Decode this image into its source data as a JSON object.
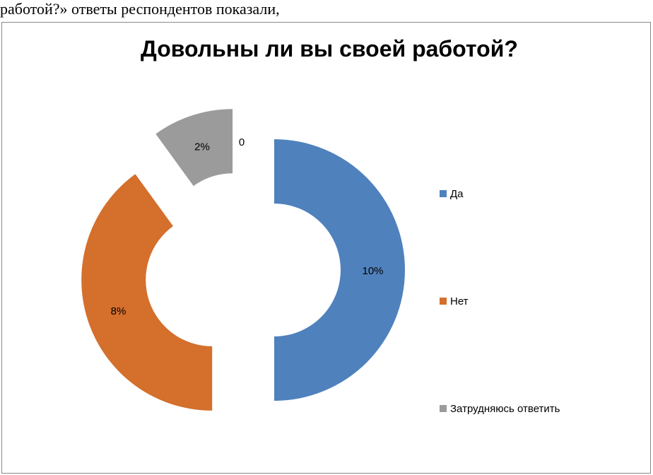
{
  "document": {
    "text_line": "работой?» ответы респондентов показали,"
  },
  "chart_data": {
    "type": "pie",
    "variant": "exploded-doughnut",
    "title": "Довольны ли вы своей работой?",
    "categories": [
      "Да",
      "Нет",
      "Затрудняюсь ответить"
    ],
    "values": [
      10,
      8,
      2
    ],
    "data_labels": [
      "10%",
      "8%",
      "2%"
    ],
    "extra_labels": [
      "0"
    ],
    "colors": [
      "#4F81BD",
      "#D46F2C",
      "#9B9B9B"
    ],
    "legend_position": "right"
  }
}
